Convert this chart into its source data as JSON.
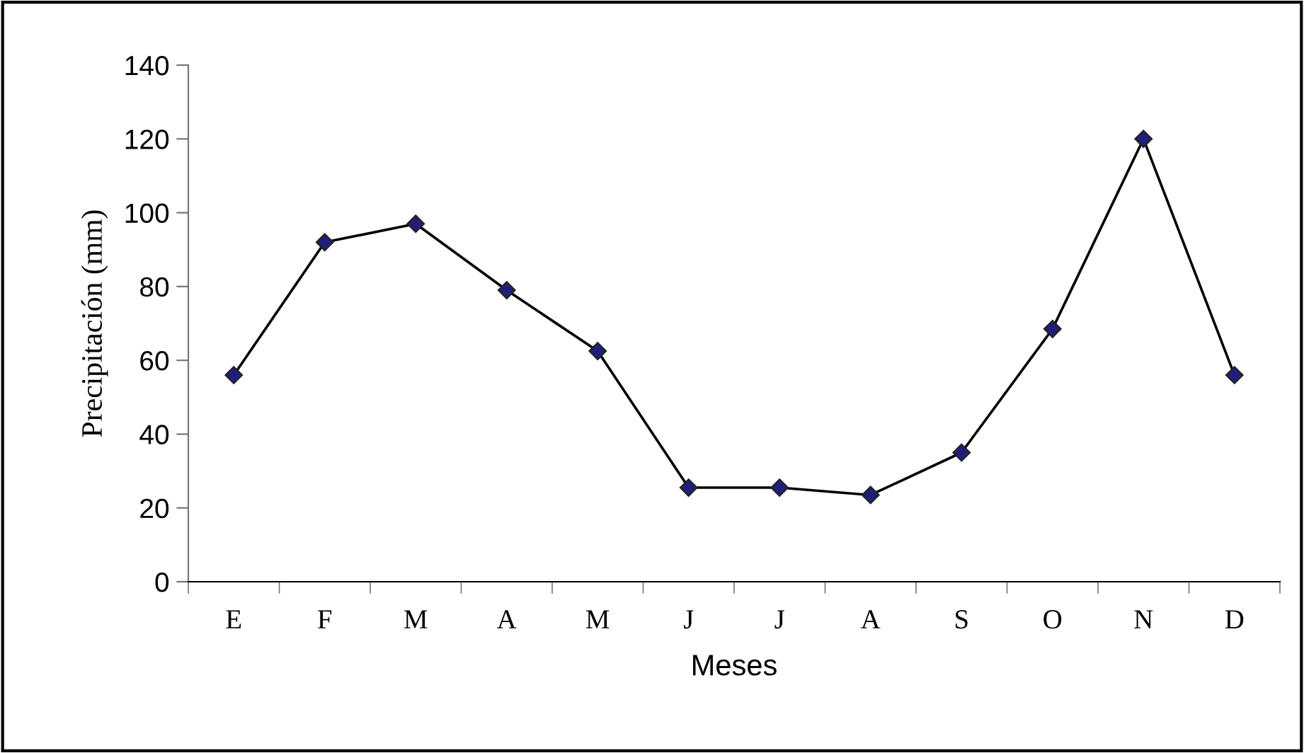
{
  "chart_data": {
    "type": "line",
    "xlabel": "Meses",
    "ylabel": "Precipitación (mm)",
    "categories": [
      "E",
      "F",
      "M",
      "A",
      "M",
      "J",
      "J",
      "A",
      "S",
      "O",
      "N",
      "D"
    ],
    "series": [
      {
        "color": "#1f1f7a",
        "values": [
          56,
          92,
          97,
          79,
          62.5,
          25.5,
          25.5,
          23.5,
          35,
          68.5,
          120,
          56
        ]
      }
    ],
    "ylim": [
      0,
      140
    ],
    "yticks": [
      0,
      20,
      40,
      60,
      80,
      100,
      120,
      140
    ],
    "grid": false,
    "legend": false,
    "marker": "diamond",
    "line_style": "solid"
  }
}
